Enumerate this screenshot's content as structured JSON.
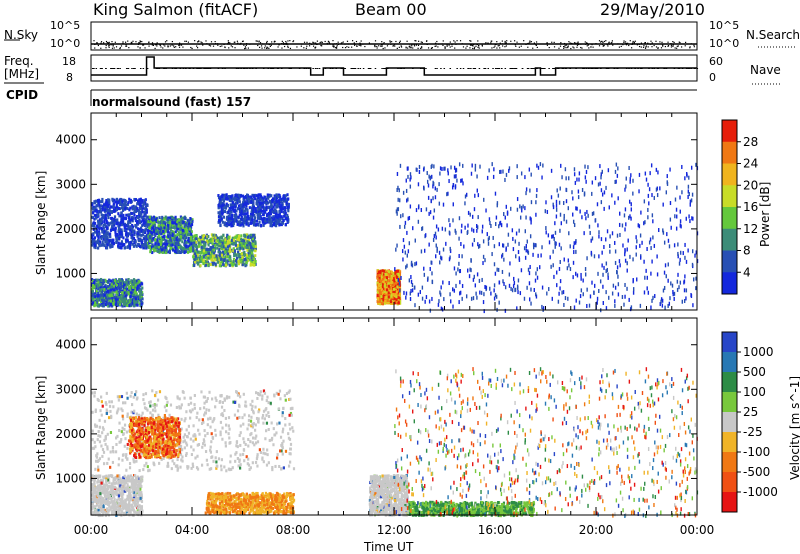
{
  "header": {
    "station": "King Salmon (fitACF)",
    "beam": "Beam 00",
    "date": "29/May/2010"
  },
  "top_panels": {
    "nsky_label": "N.Sky",
    "nsky_ticks": [
      "10^5",
      "10^0"
    ],
    "nsearch_label": "N.Search",
    "freq_label_1": "Freq.",
    "freq_label_2": "[MHz]",
    "freq_ticks": [
      "18",
      "8"
    ],
    "nave_ticks": [
      "60",
      "0"
    ],
    "nave_label": "Nave",
    "cpid_label": "CPID",
    "cpid_value": "normalsound (fast) 157"
  },
  "chart_data": [
    {
      "type": "heatmap",
      "title": "",
      "xlabel": "Time UT",
      "ylabel": "Slant Range [km]",
      "x_ticks": [
        "00:00",
        "04:00",
        "08:00",
        "12:00",
        "16:00",
        "20:00",
        "00:00"
      ],
      "y_ticks": [
        1000,
        2000,
        3000,
        4000
      ],
      "xlim_hours": [
        0,
        24
      ],
      "ylim_km": [
        180,
        4600
      ],
      "colorbar": {
        "label": "Power [dB]",
        "ticks": [
          "4",
          "8",
          "12",
          "16",
          "20",
          "24",
          "28"
        ],
        "colors": [
          "#1428dc",
          "#2850b4",
          "#3c8c78",
          "#64c83c",
          "#c8dc28",
          "#f0b41e",
          "#f07814",
          "#e61e0a"
        ]
      },
      "regions": [
        {
          "t0": 0.0,
          "t1": 2.2,
          "r0": 1600,
          "r1": 2700,
          "level": "low-mid"
        },
        {
          "t0": 2.2,
          "t1": 4.0,
          "r0": 1500,
          "r1": 2300,
          "level": "mid"
        },
        {
          "t0": 4.0,
          "t1": 6.5,
          "r0": 1200,
          "r1": 1900,
          "level": "mid-high"
        },
        {
          "t0": 5.0,
          "t1": 7.8,
          "r0": 2100,
          "r1": 2800,
          "level": "low-mid"
        },
        {
          "t0": 0.0,
          "t1": 2.0,
          "r0": 300,
          "r1": 900,
          "level": "mid"
        },
        {
          "t0": 11.3,
          "t1": 12.2,
          "r0": 350,
          "r1": 1100,
          "level": "high"
        },
        {
          "t0": 12.0,
          "t1": 24.0,
          "r0": 200,
          "r1": 3500,
          "level": "sparse-low"
        }
      ]
    },
    {
      "type": "heatmap",
      "title": "",
      "xlabel": "Time UT",
      "ylabel": "Slant Range [km]",
      "x_ticks": [
        "00:00",
        "04:00",
        "08:00",
        "12:00",
        "16:00",
        "20:00",
        "00:00"
      ],
      "y_ticks": [
        1000,
        2000,
        3000,
        4000
      ],
      "xlim_hours": [
        0,
        24
      ],
      "ylim_km": [
        180,
        4600
      ],
      "colorbar": {
        "label": "Velocity [m s^-1]",
        "ticks": [
          "1000",
          "500",
          "100",
          "25",
          "-25",
          "-100",
          "-500",
          "-1000"
        ],
        "colors": [
          "#2846c8",
          "#2878b4",
          "#2d8c46",
          "#78c83c",
          "#c8c8c8",
          "#f0b428",
          "#f07814",
          "#f05014",
          "#e61414"
        ]
      },
      "regions": [
        {
          "t0": 0.0,
          "t1": 8.0,
          "r0": 1200,
          "r1": 3000,
          "level": "ground-scatter"
        },
        {
          "t0": 1.5,
          "t1": 3.5,
          "r0": 1500,
          "r1": 2400,
          "level": "negative"
        },
        {
          "t0": 0.0,
          "t1": 2.0,
          "r0": 200,
          "r1": 1100,
          "level": "ground-scatter"
        },
        {
          "t0": 4.5,
          "t1": 8.0,
          "r0": 250,
          "r1": 700,
          "level": "negative-small"
        },
        {
          "t0": 11.0,
          "t1": 12.5,
          "r0": 200,
          "r1": 1100,
          "level": "ground-scatter"
        },
        {
          "t0": 12.5,
          "t1": 17.5,
          "r0": 200,
          "r1": 500,
          "level": "positive"
        },
        {
          "t0": 12.0,
          "t1": 24.0,
          "r0": 200,
          "r1": 3500,
          "level": "sparse-mixed"
        }
      ]
    }
  ],
  "colors": {
    "panel_border": "#000000",
    "background": "#ffffff"
  }
}
